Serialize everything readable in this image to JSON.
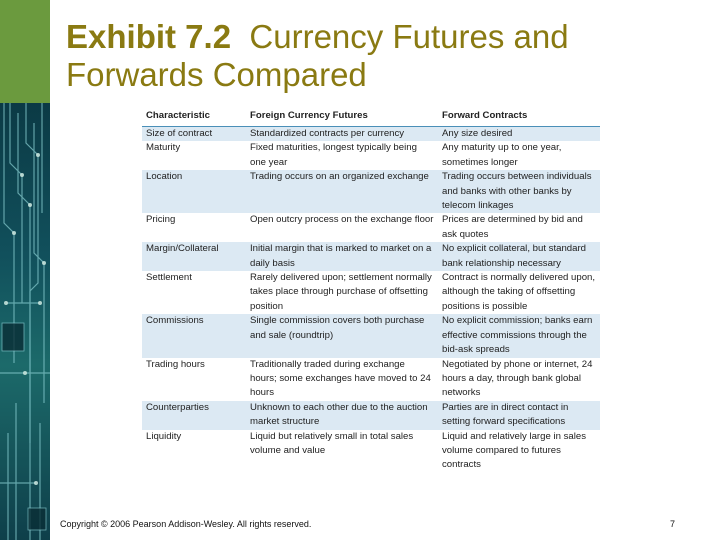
{
  "slide": {
    "title_label": "Exhibit 7.2",
    "title_rest": "Currency Futures and Forwards Compared",
    "footer": "Copyright © 2006 Pearson Addison-Wesley. All rights reserved.",
    "page_number": "7"
  },
  "table": {
    "headers": [
      "Characteristic",
      "Foreign Currency Futures",
      "Forward Contracts"
    ],
    "rows": [
      [
        "Size of contract",
        "Standardized contracts per currency",
        "Any size desired"
      ],
      [
        "Maturity",
        "Fixed maturities, longest typically being one year",
        "Any maturity up to one year, sometimes longer"
      ],
      [
        "Location",
        "Trading occurs on an organized exchange",
        "Trading occurs between individuals and banks with other banks by telecom linkages"
      ],
      [
        "Pricing",
        "Open outcry process on the exchange floor",
        "Prices are determined by bid and ask quotes"
      ],
      [
        "Margin/Collateral",
        "Initial margin that is marked to market on a daily basis",
        "No explicit collateral, but standard bank relationship necessary"
      ],
      [
        "Settlement",
        "Rarely delivered upon; settlement normally takes place through purchase of offsetting position",
        "Contract is normally delivered upon, although the taking of offsetting positions is possible"
      ],
      [
        "Commissions",
        "Single commission covers both purchase and sale (roundtrip)",
        "No explicit commission; banks earn effective commissions through the bid-ask spreads"
      ],
      [
        "Trading hours",
        "Traditionally traded during exchange hours; some exchanges have moved to 24 hours",
        "Negotiated by phone or internet, 24 hours a day, through bank global networks"
      ],
      [
        "Counterparties",
        "Unknown to each other due to the auction market structure",
        "Parties are in direct contact in setting forward specifications"
      ],
      [
        "Liquidity",
        "Liquid but relatively small in total sales volume and value",
        "Liquid and relatively large in sales volume compared to futures contracts"
      ]
    ]
  }
}
